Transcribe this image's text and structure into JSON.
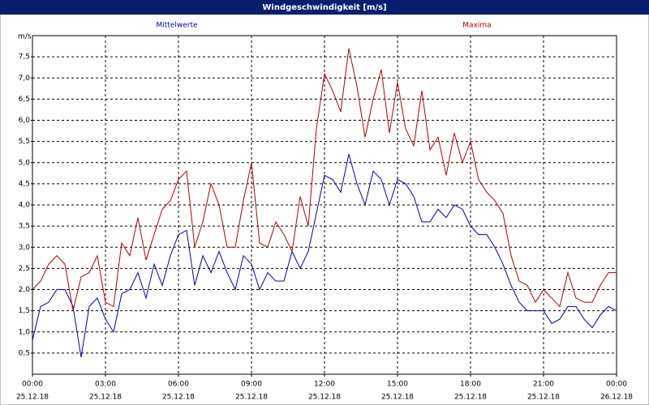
{
  "chart_data": {
    "type": "line",
    "title": "Windgeschwindigkeit [m/s]",
    "y_label": "m/s",
    "x": [
      0,
      20,
      40,
      60,
      80,
      100,
      120,
      140,
      160,
      180,
      200,
      220,
      240,
      260,
      280,
      300,
      320,
      340,
      360,
      380,
      400,
      420,
      440,
      460,
      480,
      500,
      520,
      540,
      560,
      580,
      600,
      620,
      640,
      660,
      680,
      700,
      720,
      740,
      760,
      780,
      800,
      820,
      840,
      860,
      880,
      900,
      920,
      940,
      960,
      980,
      1000,
      1020,
      1040,
      1060,
      1080,
      1100,
      1120,
      1140,
      1160,
      1180,
      1200,
      1220,
      1240,
      1260,
      1280,
      1300,
      1320,
      1340,
      1360,
      1380,
      1400,
      1420,
      1440
    ],
    "series": [
      {
        "name": "Mittelwerte",
        "color": "#0000b0",
        "values": [
          0.8,
          1.6,
          1.7,
          2.0,
          2.0,
          1.6,
          0.4,
          1.6,
          1.8,
          1.3,
          1.0,
          1.9,
          2.0,
          2.4,
          1.8,
          2.6,
          2.1,
          2.8,
          3.3,
          3.4,
          2.1,
          2.8,
          2.4,
          2.9,
          2.4,
          2.0,
          2.8,
          2.6,
          2.0,
          2.4,
          2.2,
          2.2,
          2.9,
          2.5,
          2.9,
          3.8,
          4.7,
          4.6,
          4.3,
          5.2,
          4.5,
          4.0,
          4.8,
          4.6,
          4.0,
          4.6,
          4.5,
          4.2,
          3.6,
          3.6,
          3.9,
          3.7,
          4.0,
          3.9,
          3.5,
          3.3,
          3.3,
          3.0,
          2.6,
          2.1,
          1.7,
          1.5,
          1.5,
          1.5,
          1.2,
          1.3,
          1.6,
          1.6,
          1.3,
          1.1,
          1.4,
          1.6,
          1.5
        ]
      },
      {
        "name": "Maxima",
        "color": "#b00000",
        "values": [
          2.0,
          2.2,
          2.6,
          2.8,
          2.6,
          1.5,
          2.3,
          2.4,
          2.8,
          1.7,
          1.6,
          3.1,
          2.8,
          3.7,
          2.7,
          3.3,
          3.9,
          4.1,
          4.6,
          4.8,
          3.0,
          3.6,
          4.5,
          4.0,
          3.0,
          3.0,
          4.1,
          5.0,
          3.1,
          3.0,
          3.6,
          3.3,
          2.9,
          4.2,
          3.5,
          5.8,
          7.1,
          6.7,
          6.2,
          7.7,
          6.8,
          5.6,
          6.5,
          7.2,
          5.7,
          6.9,
          5.8,
          5.4,
          6.7,
          5.3,
          5.6,
          4.7,
          5.7,
          5.0,
          5.5,
          4.6,
          4.3,
          4.1,
          3.8,
          2.8,
          2.2,
          2.1,
          1.7,
          2.0,
          1.8,
          1.6,
          2.4,
          1.8,
          1.7,
          1.7,
          2.1,
          2.4,
          2.4
        ]
      }
    ],
    "xlim": [
      0,
      1440
    ],
    "xticks": [
      {
        "value": 0,
        "label": "00:00",
        "date": "25.12.18"
      },
      {
        "value": 180,
        "label": "03:00",
        "date": "25.12.18"
      },
      {
        "value": 360,
        "label": "06:00",
        "date": "25.12.18"
      },
      {
        "value": 540,
        "label": "09:00",
        "date": "25.12.18"
      },
      {
        "value": 720,
        "label": "12:00",
        "date": "25.12.18"
      },
      {
        "value": 900,
        "label": "15:00",
        "date": "25.12.18"
      },
      {
        "value": 1080,
        "label": "18:00",
        "date": "25.12.18"
      },
      {
        "value": 1260,
        "label": "21:00",
        "date": "25.12.18"
      },
      {
        "value": 1440,
        "label": "00:00",
        "date": "26.12.18"
      }
    ],
    "ylim": [
      0,
      8
    ],
    "yticks": [
      {
        "value": 0.5,
        "label": "0,5"
      },
      {
        "value": 1,
        "label": "1,0"
      },
      {
        "value": 1.5,
        "label": "1,5"
      },
      {
        "value": 2,
        "label": "2,0"
      },
      {
        "value": 2.5,
        "label": "2,5"
      },
      {
        "value": 3,
        "label": "3,0"
      },
      {
        "value": 3.5,
        "label": "3,5"
      },
      {
        "value": 4,
        "label": "4,0"
      },
      {
        "value": 4.5,
        "label": "4,5"
      },
      {
        "value": 5,
        "label": "5,0"
      },
      {
        "value": 5.5,
        "label": "5,5"
      },
      {
        "value": 6,
        "label": "6,0"
      },
      {
        "value": 6.5,
        "label": "6,5"
      },
      {
        "value": 7,
        "label": "7,0"
      },
      {
        "value": 7.5,
        "label": "7,5"
      }
    ],
    "grid": true
  }
}
